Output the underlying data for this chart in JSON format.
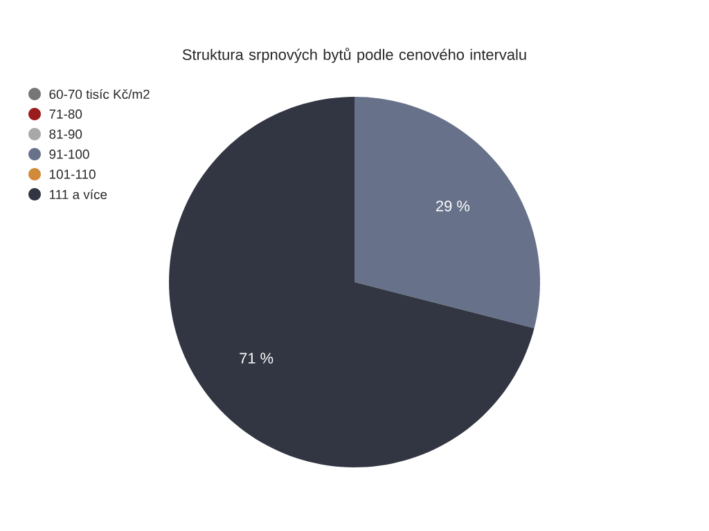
{
  "chart_data": {
    "type": "pie",
    "title": "Struktura srpnových bytů podle cenového intervalu",
    "categories": [
      "60-70 tisíc Kč/m2",
      "71-80",
      "81-90",
      "91-100",
      "101-110",
      "111 a více"
    ],
    "values": [
      0,
      0,
      0,
      29,
      0,
      71
    ],
    "colors": [
      "#767676",
      "#9b1c1c",
      "#a8a8a8",
      "#67728a",
      "#d08a3a",
      "#323642"
    ],
    "value_labels": [
      null,
      null,
      null,
      "29 %",
      null,
      "71 %"
    ],
    "legend": "top left"
  }
}
